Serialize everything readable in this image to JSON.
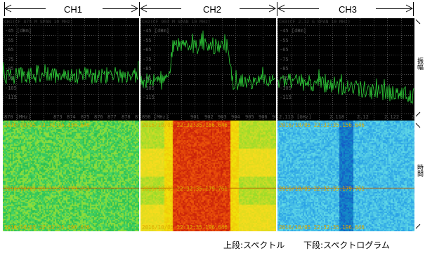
{
  "channels": [
    {
      "name": "CH1",
      "spec_header": "CH1(CF 875 M SPAN 10 MHz)",
      "x_unit": "870 [MHz]",
      "x_ticks": [
        "873",
        "874",
        "875",
        "876",
        "877",
        "878",
        "879"
      ],
      "waterfall_times": [
        "2016/10/05 22:32:35.156.646",
        "2016/10/05 22:32:35.179.761",
        "2016/10/05 22:32:35.196.646"
      ],
      "spectrum_level": "low",
      "waterfall_palette": "green"
    },
    {
      "name": "CH2",
      "spec_header": "CH2(CF 903 M SPAN 10 MHz)",
      "x_unit": "898 [MHz]",
      "x_ticks": [
        "901",
        "902",
        "903",
        "904",
        "905",
        "906",
        "907"
      ],
      "waterfall_times": [
        "2016/10/05 22:32:35.156.646",
        "2016/10/05 22:32:35.179.761",
        "2016/10/05 22:32:35.196.646"
      ],
      "spectrum_level": "hump",
      "waterfall_palette": "red-center"
    },
    {
      "name": "CH3",
      "spec_header": "CH3(CF 2.12 G SPAN 10 MHz)",
      "x_unit": "2.115 [GHz]",
      "x_ticks": [
        "2.118",
        "2.12",
        "2.122",
        "2.1"
      ],
      "waterfall_times": [
        "2016/10/05 22:32:35.156.646",
        "2016/10/05 22:32:35.179.761",
        "2016/10/05 22:32:35.196.646"
      ],
      "spectrum_level": "descending",
      "waterfall_palette": "blue"
    }
  ],
  "y_ticks": [
    "-45 [dBm]",
    "-55",
    "-65",
    "-75",
    "-85",
    "-95",
    "-105",
    "-115"
  ],
  "side_labels": {
    "top": "振幅",
    "bottom": "時間"
  },
  "captions": {
    "top": "上段:スペクトル",
    "bottom": "下段:スペクトログラム"
  },
  "colors": {
    "trace": "#2fd23a",
    "grid": "#4a4a4a",
    "timestamp": "#ddaa00",
    "marker_line": "#b85a00"
  }
}
